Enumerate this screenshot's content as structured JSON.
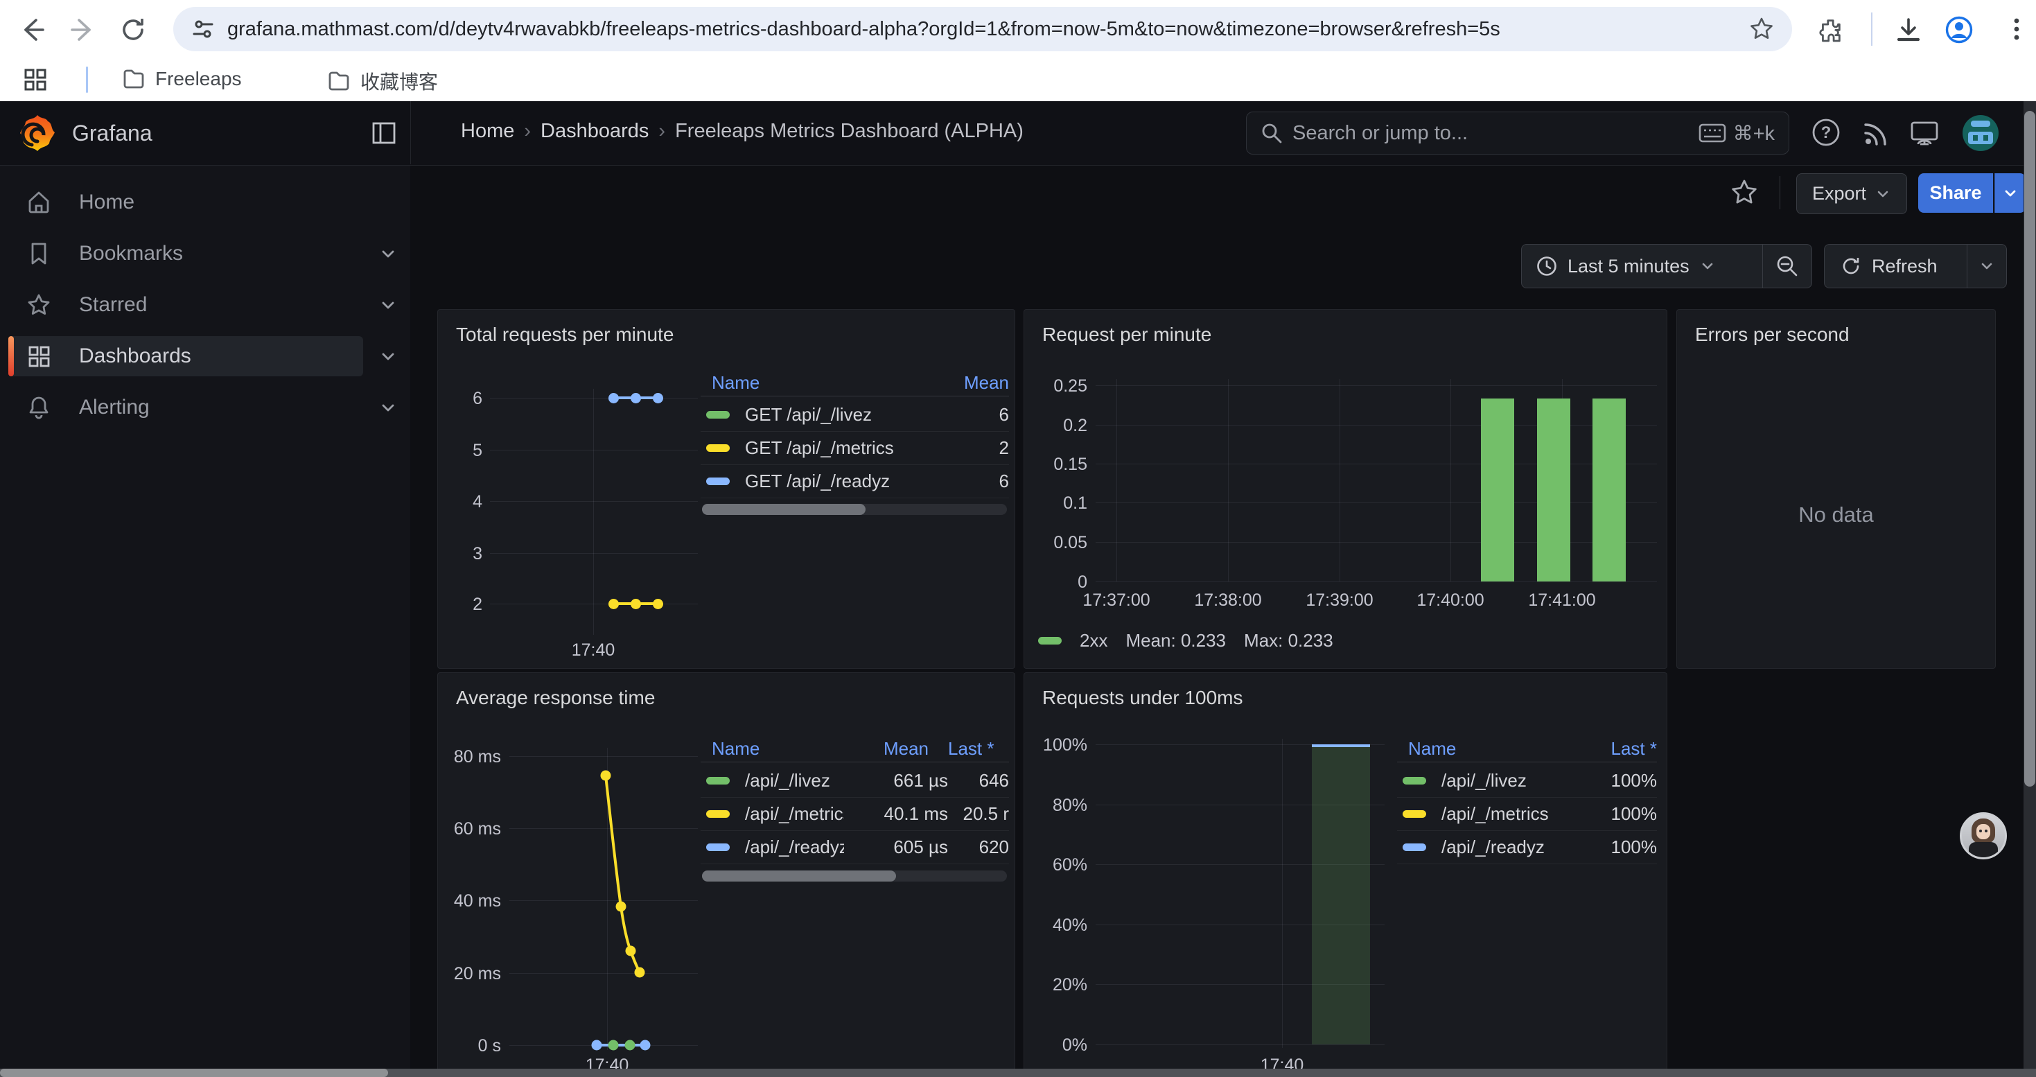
{
  "browser": {
    "url": "grafana.mathmast.com/d/deytv4rwavabkb/freeleaps-metrics-dashboard-alpha?orgId=1&from=now-5m&to=now&timezone=browser&refresh=5s",
    "bookmarks": [
      "Freeleaps",
      "收藏博客"
    ]
  },
  "nav": {
    "brand": "Grafana",
    "breadcrumb": [
      "Home",
      "Dashboards",
      "Freeleaps Metrics Dashboard (ALPHA)"
    ],
    "breadcrumb_separator": "›",
    "search_placeholder": "Search or jump to...",
    "search_shortcut": "⌘+k"
  },
  "sidebar": {
    "items": [
      "Home",
      "Bookmarks",
      "Starred",
      "Dashboards",
      "Alerting"
    ],
    "active": "Dashboards"
  },
  "toolbar": {
    "export_label": "Export",
    "share_label": "Share",
    "time_range": "Last 5 minutes",
    "refresh_label": "Refresh"
  },
  "colors": {
    "green": "#73BF69",
    "yellow": "#FADE2A",
    "blue": "#8AB8FF",
    "share_blue": "#3D71D9"
  },
  "panels": [
    {
      "title": "Total requests per minute",
      "chart_data": {
        "type": "line",
        "yticks": [
          "6",
          "5",
          "4",
          "3",
          "2"
        ],
        "xticks": [
          "17:40"
        ],
        "series": [
          {
            "name": "GET /api/_/livez",
            "color": "#73BF69",
            "value": 6
          },
          {
            "name": "GET /api/_/metrics",
            "color": "#FADE2A",
            "value": 2
          },
          {
            "name": "GET /api/_/readyz",
            "color": "#8AB8FF",
            "value": 6
          }
        ]
      },
      "legend": {
        "columns": [
          "Name",
          "Mean"
        ],
        "rows": [
          {
            "color": "#73BF69",
            "name": "GET /api/_/livez",
            "mean": "6"
          },
          {
            "color": "#FADE2A",
            "name": "GET /api/_/metrics",
            "mean": "2"
          },
          {
            "color": "#8AB8FF",
            "name": "GET /api/_/readyz",
            "mean": "6"
          }
        ]
      }
    },
    {
      "title": "Request per minute",
      "chart_data": {
        "type": "bar",
        "yticks": [
          "0.25",
          "0.2",
          "0.15",
          "0.1",
          "0.05",
          "0"
        ],
        "ymax": 0.25,
        "xticks": [
          "17:37:00",
          "17:38:00",
          "17:39:00",
          "17:40:00",
          "17:41:00"
        ],
        "series_name": "2xx",
        "values": [
          0.233,
          0.233,
          0.233
        ],
        "bar_color": "#73BF69"
      },
      "legend": {
        "series": "2xx",
        "mean": "Mean: 0.233",
        "max": "Max: 0.233"
      }
    },
    {
      "title": "Errors per second",
      "no_data": "No data"
    },
    {
      "title": "Average response time",
      "chart_data": {
        "type": "line",
        "yticks": [
          "80 ms",
          "60 ms",
          "40 ms",
          "20 ms",
          "0 s"
        ],
        "xticks": [
          "17:40"
        ],
        "series": [
          {
            "name": "/api/_/livez",
            "color": "#73BF69",
            "approx_ms": [
              0.65,
              0.66,
              0.66,
              0.65
            ]
          },
          {
            "name": "/api/_/metrics",
            "color": "#FADE2A",
            "approx_ms": [
              75,
              40,
              27,
              20.5
            ]
          },
          {
            "name": "/api/_/readyz",
            "color": "#8AB8FF",
            "approx_ms": [
              0.6,
              0.61,
              0.61,
              0.62
            ]
          }
        ]
      },
      "legend": {
        "columns": [
          "Name",
          "Mean",
          "Last *"
        ],
        "rows": [
          {
            "color": "#73BF69",
            "name": "/api/_/livez",
            "mean": "661 µs",
            "last": "646"
          },
          {
            "color": "#FADE2A",
            "name": "/api/_/metrics",
            "mean": "40.1 ms",
            "last": "20.5 r"
          },
          {
            "color": "#8AB8FF",
            "name": "/api/_/readyz",
            "mean": "605 µs",
            "last": "620"
          }
        ]
      }
    },
    {
      "title": "Requests under 100ms",
      "chart_data": {
        "type": "area",
        "yticks": [
          "100%",
          "80%",
          "60%",
          "40%",
          "20%",
          "0%"
        ],
        "xticks": [
          "17:40"
        ],
        "series": [
          {
            "name": "/api/_/livez",
            "color": "#73BF69",
            "value_pct": 100
          },
          {
            "name": "/api/_/metrics",
            "color": "#FADE2A",
            "value_pct": 100
          },
          {
            "name": "/api/_/readyz",
            "color": "#8AB8FF",
            "value_pct": 100
          }
        ]
      },
      "legend": {
        "columns": [
          "Name",
          "Last *"
        ],
        "rows": [
          {
            "color": "#73BF69",
            "name": "/api/_/livez",
            "last": "100%"
          },
          {
            "color": "#FADE2A",
            "name": "/api/_/metrics",
            "last": "100%"
          },
          {
            "color": "#8AB8FF",
            "name": "/api/_/readyz",
            "last": "100%"
          }
        ]
      }
    }
  ]
}
